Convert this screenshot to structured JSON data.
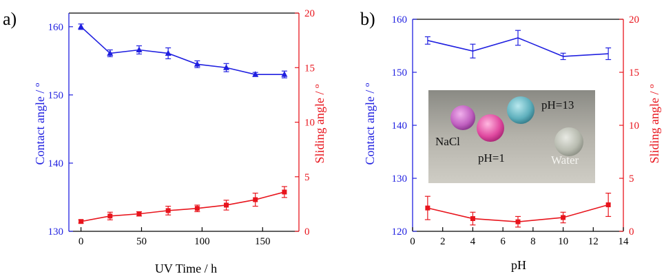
{
  "colors": {
    "contact": "#1f1fe0",
    "sliding": "#e8141c",
    "axis": "#000000"
  },
  "chart_data": [
    {
      "panel_label": "a)",
      "type": "line",
      "xlabel": "UV Time / h",
      "ylabel_left": "Contact angle / º",
      "ylabel_right": "Sliding angle / º",
      "xlim": [
        -10,
        180
      ],
      "xticks": [
        0,
        50,
        100,
        150
      ],
      "ylim_left": [
        130,
        162
      ],
      "yticks_left": [
        130,
        140,
        150,
        160
      ],
      "ylim_right": [
        0,
        20
      ],
      "yticks_right": [
        0,
        5,
        10,
        15,
        20
      ],
      "series": [
        {
          "axis": "left",
          "marker": "triangle",
          "x": [
            0,
            24,
            48,
            72,
            96,
            120,
            144,
            168
          ],
          "y": [
            160,
            156.1,
            156.6,
            156.1,
            154.5,
            154.0,
            153.0,
            153.0
          ],
          "err": [
            0.4,
            0.5,
            0.6,
            0.8,
            0.5,
            0.6,
            0.3,
            0.5
          ]
        },
        {
          "axis": "right",
          "marker": "square",
          "x": [
            0,
            24,
            48,
            72,
            96,
            120,
            144,
            168
          ],
          "y": [
            0.9,
            1.4,
            1.6,
            1.9,
            2.1,
            2.4,
            2.9,
            3.6
          ],
          "err": [
            0.15,
            0.35,
            0.2,
            0.4,
            0.3,
            0.45,
            0.6,
            0.5
          ]
        }
      ]
    },
    {
      "panel_label": "b)",
      "type": "line",
      "xlabel": "pH",
      "ylabel_left": "Contact angle / º",
      "ylabel_right": "Sliding angle / º",
      "xlim": [
        0,
        14
      ],
      "xticks": [
        0,
        2,
        4,
        6,
        8,
        10,
        12,
        14
      ],
      "ylim_left": [
        120,
        160
      ],
      "yticks_left": [
        120,
        130,
        140,
        150,
        160
      ],
      "ylim_right": [
        0,
        20
      ],
      "yticks_right": [
        0,
        5,
        10,
        15,
        20
      ],
      "series": [
        {
          "axis": "left",
          "marker": "none",
          "x": [
            1,
            4,
            7,
            10,
            13
          ],
          "y": [
            156,
            154,
            156.5,
            153,
            153.5
          ],
          "err": [
            0.7,
            1.3,
            1.4,
            0.6,
            1.1
          ]
        },
        {
          "axis": "right",
          "marker": "square",
          "x": [
            1,
            4,
            7,
            10,
            13
          ],
          "y": [
            2.2,
            1.2,
            0.9,
            1.3,
            2.5
          ],
          "err": [
            1.1,
            0.6,
            0.5,
            0.5,
            1.1
          ]
        }
      ],
      "inset_labels": [
        "pH=13",
        "NaCl",
        "pH=1",
        "Water"
      ]
    }
  ]
}
